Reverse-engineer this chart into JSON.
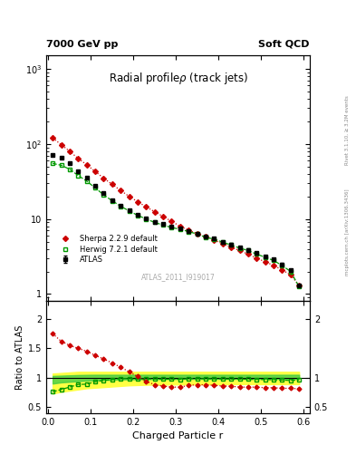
{
  "title_main": "Radial profileρ (track jets)",
  "top_left_label": "7000 GeV pp",
  "top_right_label": "Soft QCD",
  "watermark": "ATLAS_2011_I919017",
  "right_label": "Rivet 3.1.10, ≥ 3.2M events",
  "right_label2": "mcplots.cern.ch [arXiv:1306.3436]",
  "xlabel": "Charged Particle r",
  "ylabel_ratio": "Ratio to ATLAS",
  "ylim_main": [
    0.8,
    1500
  ],
  "ylim_ratio": [
    0.4,
    2.3
  ],
  "atlas_x": [
    0.01,
    0.03,
    0.05,
    0.07,
    0.09,
    0.11,
    0.13,
    0.15,
    0.17,
    0.19,
    0.21,
    0.23,
    0.25,
    0.27,
    0.29,
    0.31,
    0.33,
    0.35,
    0.37,
    0.39,
    0.41,
    0.43,
    0.45,
    0.47,
    0.49,
    0.51,
    0.53,
    0.55,
    0.57,
    0.59
  ],
  "atlas_y": [
    72,
    65,
    55,
    43,
    36,
    28,
    22,
    18,
    15,
    13,
    11.5,
    10.2,
    9.2,
    8.5,
    7.9,
    7.5,
    6.9,
    6.4,
    5.8,
    5.5,
    5.0,
    4.6,
    4.2,
    3.9,
    3.5,
    3.2,
    2.9,
    2.5,
    2.1,
    1.3
  ],
  "atlas_yerr": [
    2.0,
    2.0,
    1.5,
    1.2,
    1.0,
    0.8,
    0.6,
    0.5,
    0.4,
    0.4,
    0.35,
    0.3,
    0.28,
    0.26,
    0.24,
    0.22,
    0.2,
    0.19,
    0.17,
    0.16,
    0.15,
    0.14,
    0.13,
    0.12,
    0.11,
    0.1,
    0.09,
    0.08,
    0.07,
    0.05
  ],
  "herwig_x": [
    0.01,
    0.03,
    0.05,
    0.07,
    0.09,
    0.11,
    0.13,
    0.15,
    0.17,
    0.19,
    0.21,
    0.23,
    0.25,
    0.27,
    0.29,
    0.31,
    0.33,
    0.35,
    0.37,
    0.39,
    0.41,
    0.43,
    0.45,
    0.47,
    0.49,
    0.51,
    0.53,
    0.55,
    0.57,
    0.59
  ],
  "herwig_y": [
    55,
    52,
    46,
    38,
    32,
    26,
    21,
    17.5,
    14.8,
    12.8,
    11.2,
    10.0,
    9.0,
    8.3,
    7.7,
    7.3,
    6.8,
    6.3,
    5.7,
    5.4,
    4.9,
    4.5,
    4.1,
    3.8,
    3.4,
    3.1,
    2.8,
    2.4,
    2.0,
    1.25
  ],
  "sherpa_x": [
    0.01,
    0.03,
    0.05,
    0.07,
    0.09,
    0.11,
    0.13,
    0.15,
    0.17,
    0.19,
    0.21,
    0.23,
    0.25,
    0.27,
    0.29,
    0.31,
    0.33,
    0.35,
    0.37,
    0.39,
    0.41,
    0.43,
    0.45,
    0.47,
    0.49,
    0.51,
    0.53,
    0.55,
    0.57,
    0.59
  ],
  "sherpa_y": [
    120,
    98,
    80,
    64,
    53,
    43,
    35,
    29,
    24,
    20,
    17,
    14.5,
    12.5,
    10.8,
    9.3,
    8.0,
    7.1,
    6.4,
    5.8,
    5.2,
    4.7,
    4.2,
    3.8,
    3.4,
    3.0,
    2.7,
    2.4,
    2.1,
    1.8,
    1.3
  ],
  "herwig_ratio": [
    0.76,
    0.8,
    0.84,
    0.885,
    0.89,
    0.93,
    0.955,
    0.97,
    0.987,
    0.985,
    0.974,
    0.98,
    0.978,
    0.976,
    0.975,
    0.973,
    0.986,
    0.984,
    0.983,
    0.982,
    0.98,
    0.978,
    0.976,
    0.974,
    0.971,
    0.969,
    0.966,
    0.96,
    0.952,
    0.962
  ],
  "sherpa_ratio": [
    1.75,
    1.62,
    1.55,
    1.5,
    1.45,
    1.38,
    1.32,
    1.25,
    1.18,
    1.1,
    1.02,
    0.94,
    0.88,
    0.86,
    0.84,
    0.84,
    0.87,
    0.88,
    0.88,
    0.87,
    0.86,
    0.855,
    0.84,
    0.84,
    0.84,
    0.83,
    0.83,
    0.82,
    0.82,
    0.81
  ],
  "band_x": [
    0.01,
    0.03,
    0.05,
    0.07,
    0.09,
    0.11,
    0.13,
    0.15,
    0.17,
    0.19,
    0.21,
    0.23,
    0.25,
    0.27,
    0.29,
    0.31,
    0.33,
    0.35,
    0.37,
    0.39,
    0.41,
    0.43,
    0.45,
    0.47,
    0.49,
    0.51,
    0.53,
    0.55,
    0.57,
    0.59
  ],
  "band_yellow_lower": [
    0.73,
    0.76,
    0.78,
    0.8,
    0.82,
    0.83,
    0.84,
    0.85,
    0.86,
    0.87,
    0.875,
    0.88,
    0.882,
    0.883,
    0.884,
    0.885,
    0.886,
    0.887,
    0.888,
    0.889,
    0.89,
    0.89,
    0.89,
    0.89,
    0.89,
    0.89,
    0.89,
    0.89,
    0.89,
    0.89
  ],
  "band_yellow_upper": [
    1.07,
    1.08,
    1.09,
    1.1,
    1.1,
    1.1,
    1.1,
    1.1,
    1.1,
    1.1,
    1.1,
    1.1,
    1.1,
    1.1,
    1.1,
    1.1,
    1.1,
    1.1,
    1.1,
    1.1,
    1.1,
    1.1,
    1.1,
    1.1,
    1.1,
    1.1,
    1.1,
    1.1,
    1.1,
    1.1
  ],
  "band_green_lower": [
    0.9,
    0.92,
    0.93,
    0.94,
    0.95,
    0.955,
    0.96,
    0.965,
    0.97,
    0.972,
    0.974,
    0.975,
    0.976,
    0.977,
    0.978,
    0.979,
    0.98,
    0.98,
    0.98,
    0.98,
    0.98,
    0.98,
    0.98,
    0.98,
    0.98,
    0.98,
    0.98,
    0.98,
    0.98,
    0.98
  ],
  "band_green_upper": [
    1.03,
    1.035,
    1.04,
    1.045,
    1.048,
    1.05,
    1.05,
    1.05,
    1.05,
    1.05,
    1.05,
    1.05,
    1.05,
    1.05,
    1.05,
    1.05,
    1.05,
    1.05,
    1.05,
    1.05,
    1.05,
    1.05,
    1.05,
    1.05,
    1.05,
    1.05,
    1.05,
    1.05,
    1.05,
    1.05
  ],
  "atlas_color": "#000000",
  "herwig_color": "#009900",
  "sherpa_color": "#cc0000",
  "band_yellow_color": "#ffff44",
  "band_green_color": "#44cc44"
}
